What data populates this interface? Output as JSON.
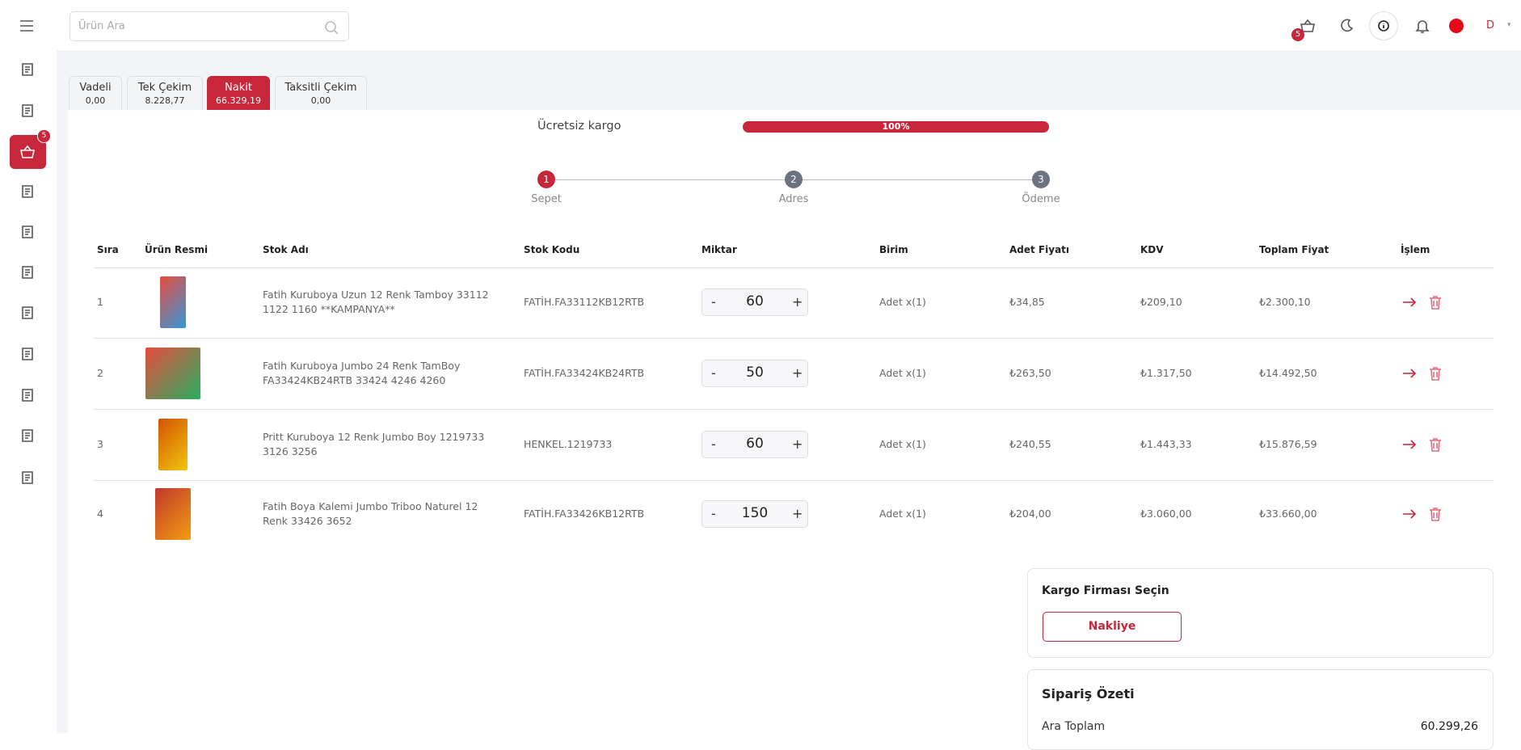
{
  "header": {
    "search_placeholder": "Ürün Ara",
    "cart_count": "5",
    "user_initial": "D"
  },
  "sidebar": {
    "cart_badge": "5"
  },
  "tabs": [
    {
      "name": "Vadeli",
      "amount": "0,00"
    },
    {
      "name": "Tek Çekim",
      "amount": "8.228,77"
    },
    {
      "name": "Nakit",
      "amount": "66.329,19"
    },
    {
      "name": "Taksitli Çekim",
      "amount": "0,00"
    }
  ],
  "shipping": {
    "label": "Ücretsiz kargo",
    "progress": "100%"
  },
  "steps": [
    {
      "number": "1",
      "label": "Sepet"
    },
    {
      "number": "2",
      "label": "Adres"
    },
    {
      "number": "3",
      "label": "Ödeme"
    }
  ],
  "table": {
    "headers": [
      "Sıra",
      "Ürün Resmi",
      "Stok Adı",
      "Stok Kodu",
      "Miktar",
      "Birim",
      "Adet Fiyatı",
      "KDV",
      "Toplam Fiyat",
      "İşlem"
    ],
    "rows": [
      [
        "1",
        "Fatih Kuruboya Uzun 12 Renk Tamboy 33112 1122 1160 **KAMPANYA**",
        "FATİH.FA33112KB12RTB",
        "60",
        "Adet x(1)",
        "₺34,85",
        "₺209,10",
        "₺2.300,10"
      ],
      [
        "2",
        "Fatih Kuruboya Jumbo 24 Renk TamBoy FA33424KB24RTB 33424 4246 4260",
        "FATİH.FA33424KB24RTB",
        "50",
        "Adet x(1)",
        "₺263,50",
        "₺1.317,50",
        "₺14.492,50"
      ],
      [
        "3",
        "Pritt Kuruboya 12 Renk Jumbo Boy 1219733 3126 3256",
        "HENKEL.1219733",
        "60",
        "Adet x(1)",
        "₺240,55",
        "₺1.443,33",
        "₺15.876,59"
      ],
      [
        "4",
        "Fatih Boya Kalemi Jumbo Triboo Naturel 12 Renk 33426 3652",
        "FATİH.FA33426KB12RTB",
        "150",
        "Adet x(1)",
        "₺204,00",
        "₺3.060,00",
        "₺33.660,00"
      ]
    ]
  },
  "qty_minus": "-",
  "qty_plus": "+",
  "cargo": {
    "title": "Kargo Firması Seçin",
    "button": "Nakliye"
  },
  "summary": {
    "title": "Sipariş Özeti",
    "subtotal_label": "Ara Toplam",
    "subtotal_value": "60.299,26"
  }
}
